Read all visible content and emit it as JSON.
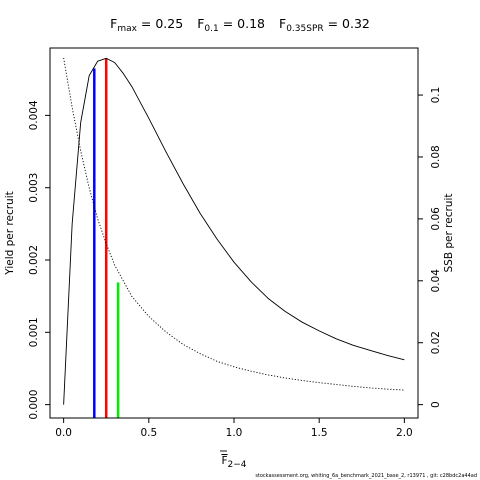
{
  "chart_data": {
    "type": "line",
    "title_parts": [
      {
        "main": "F",
        "sub": "max",
        "value": " = 0.25"
      },
      {
        "main": "F",
        "sub": "0.1",
        "value": " = 0.18"
      },
      {
        "main": "F",
        "sub": "0.35SPR",
        "value": " = 0.32"
      }
    ],
    "xlabel_main": "F",
    "xlabel_sub": "2−4",
    "ylabel_left": "Yield per recruit",
    "ylabel_right": "SSB per recruit",
    "xlim": [
      -0.08,
      2.08
    ],
    "ylim_left": [
      -0.000185,
      0.004932
    ],
    "ylim_right": [
      -0.00432,
      0.1152
    ],
    "x_ticks": [
      0,
      0.5,
      1,
      1.5,
      2
    ],
    "x_tick_labels": [
      "0.0",
      "0.5",
      "1.0",
      "1.5",
      "2.0"
    ],
    "y_left_ticks": [
      0,
      0.001,
      0.002,
      0.003,
      0.004
    ],
    "y_left_tick_labels": [
      "0.000",
      "0.001",
      "0.002",
      "0.003",
      "0.004"
    ],
    "y_right_ticks": [
      0,
      0.02,
      0.04,
      0.06,
      0.08,
      0.1
    ],
    "y_right_tick_labels": [
      "0",
      "0.02",
      "0.04",
      "0.06",
      "0.08",
      "0.1"
    ],
    "series": [
      {
        "name": "",
        "axis": "left",
        "style": "solid",
        "color": "#000000",
        "x": [
          0,
          0.05,
          0.1,
          0.15,
          0.2,
          0.25,
          0.3,
          0.35,
          0.4,
          0.5,
          0.6,
          0.7,
          0.8,
          0.9,
          1.0,
          1.1,
          1.2,
          1.3,
          1.4,
          1.5,
          1.6,
          1.7,
          1.8,
          1.9,
          2.0
        ],
        "y": [
          0,
          0.0025,
          0.0039,
          0.00455,
          0.00475,
          0.00479,
          0.00473,
          0.00458,
          0.0044,
          0.00396,
          0.0035,
          0.00306,
          0.00265,
          0.00229,
          0.00197,
          0.0017,
          0.00147,
          0.00129,
          0.00114,
          0.00102,
          0.00091,
          0.00082,
          0.00075,
          0.00068,
          0.00062
        ]
      },
      {
        "name": "",
        "axis": "right",
        "style": "dotted",
        "color": "#000000",
        "x": [
          0,
          0.05,
          0.1,
          0.15,
          0.2,
          0.25,
          0.3,
          0.35,
          0.4,
          0.5,
          0.6,
          0.7,
          0.8,
          0.9,
          1.0,
          1.1,
          1.2,
          1.3,
          1.4,
          1.5,
          1.6,
          1.7,
          1.8,
          1.9,
          2.0
        ],
        "y": [
          0.112,
          0.096,
          0.082,
          0.07,
          0.06,
          0.052,
          0.045,
          0.04,
          0.035,
          0.0285,
          0.0235,
          0.0195,
          0.0165,
          0.014,
          0.0122,
          0.0108,
          0.0096,
          0.0086,
          0.0078,
          0.0071,
          0.0065,
          0.0059,
          0.0054,
          0.005,
          0.0047
        ]
      }
    ],
    "reference_lines": [
      {
        "name": "F0.1",
        "x": 0.18,
        "axis": "left",
        "y_top": 0.00465,
        "color": "#0000ff"
      },
      {
        "name": "Fmax",
        "x": 0.25,
        "axis": "left",
        "y_top": 0.00479,
        "color": "#ff0000"
      },
      {
        "name": "F0.35SPR",
        "x": 0.32,
        "axis": "right",
        "y_top": 0.0395,
        "color": "#00ee00"
      }
    ],
    "footer": "stockassessment.org, whiting_6a_benchmark_2021_base_2, r13971 , git: c28bdc2a44ad"
  }
}
